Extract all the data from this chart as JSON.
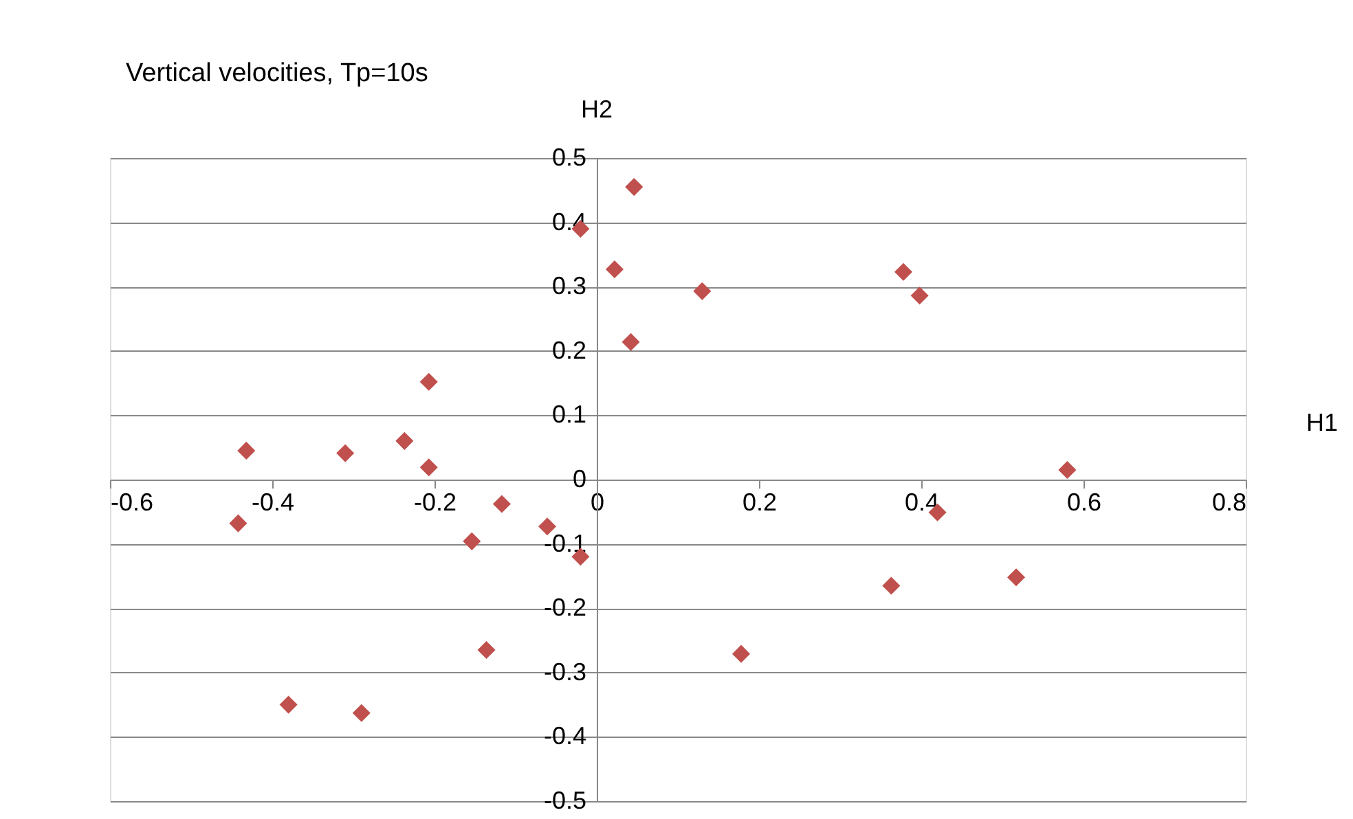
{
  "chart_data": {
    "type": "scatter",
    "title": "Vertical velocities, Tp=10s",
    "xlabel": "H1",
    "ylabel": "H2",
    "x": [
      0.046,
      -0.02,
      0.022,
      0.13,
      0.378,
      0.398,
      0.042,
      -0.207,
      -0.432,
      -0.31,
      -0.237,
      -0.207,
      0.58,
      -0.117,
      -0.442,
      -0.061,
      0.42,
      -0.154,
      -0.02,
      0.363,
      0.517,
      -0.136,
      0.178,
      -0.38,
      -0.29
    ],
    "series": [
      {
        "color": "#c0504d",
        "values": [
          0.455,
          0.39,
          0.327,
          0.293,
          0.323,
          0.286,
          0.214,
          0.152,
          0.045,
          0.041,
          0.06,
          0.019,
          0.015,
          -0.038,
          -0.068,
          -0.073,
          -0.051,
          -0.096,
          -0.12,
          -0.165,
          -0.152,
          -0.265,
          -0.271,
          -0.35,
          -0.363
        ]
      }
    ],
    "xlim": [
      -0.6,
      0.8
    ],
    "xticks": [
      -0.6,
      -0.4,
      -0.2,
      0,
      0.2,
      0.4,
      0.6,
      0.8
    ],
    "ylim": [
      -0.5,
      0.5
    ],
    "yticks": [
      -0.5,
      -0.4,
      -0.3,
      -0.2,
      -0.1,
      0,
      0.1,
      0.2,
      0.3,
      0.4,
      0.5
    ],
    "grid": "y",
    "marker": "diamond"
  }
}
